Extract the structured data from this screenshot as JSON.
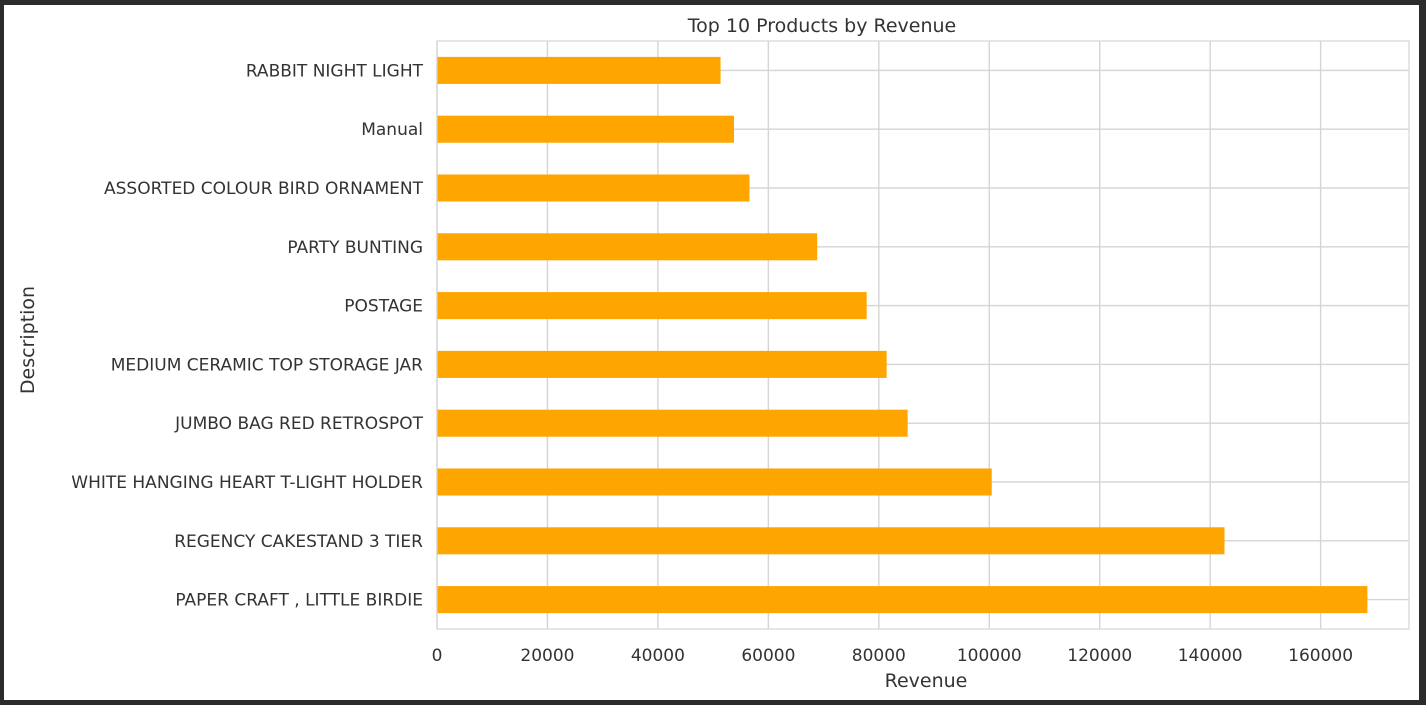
{
  "chart_data": {
    "type": "bar",
    "orientation": "horizontal",
    "title": "Top 10 Products by Revenue",
    "xlabel": "Revenue",
    "ylabel": "Description",
    "categories": [
      "PAPER CRAFT , LITTLE BIRDIE",
      "REGENCY CAKESTAND 3 TIER",
      "WHITE HANGING HEART T-LIGHT HOLDER",
      "JUMBO BAG RED RETROSPOT",
      "MEDIUM CERAMIC TOP STORAGE JAR",
      "POSTAGE",
      "PARTY BUNTING",
      "ASSORTED COLOUR BIRD ORNAMENT",
      "Manual",
      "RABBIT NIGHT LIGHT"
    ],
    "values": [
      168470,
      142593,
      100448,
      85221,
      81417,
      77804,
      68844,
      56581,
      53780,
      51346
    ],
    "xlim": [
      0,
      176000
    ],
    "xticks": [
      0,
      20000,
      40000,
      60000,
      80000,
      100000,
      120000,
      140000,
      160000
    ],
    "xtick_labels": [
      "0",
      "20000",
      "40000",
      "60000",
      "80000",
      "100000",
      "120000",
      "140000",
      "160000"
    ],
    "grid": true,
    "bar_color": "#FFA500",
    "grid_color": "#d5d5d5"
  }
}
